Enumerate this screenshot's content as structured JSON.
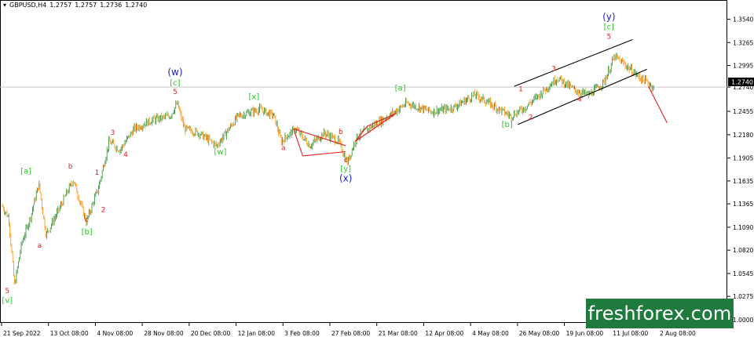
{
  "header": {
    "symbol": "GBPUSD,H4",
    "ohlc": [
      "1.2757",
      "1.2757",
      "1.2736",
      "1.2740"
    ]
  },
  "brand": {
    "logo_text": "freshforex.com",
    "logo_color": "#1f7a3d"
  },
  "colors": {
    "candle_up": "#2e8b2e",
    "candle_down": "#ff8c00",
    "grid_labels": "#000000",
    "wave_green": "#22cc22",
    "wave_red": "#e02020",
    "wave_blue": "#1e1ec8",
    "triangle_line": "#e02020",
    "channel_line": "#000000",
    "forecast_line": "#e02020",
    "current_price_line": "#c8c8c8"
  },
  "chart_data": {
    "type": "candlestick",
    "instrument": "GBPUSD",
    "timeframe": "H4",
    "ylim": [
      1.0,
      1.36
    ],
    "y_ticks": [
      "1.3540",
      "1.3265",
      "1.2995",
      "1.2740",
      "1.2455",
      "1.2180",
      "1.1905",
      "1.1635",
      "1.1365",
      "1.1090",
      "1.0820",
      "1.0545",
      "1.0275",
      "1.0000"
    ],
    "x_ticks": [
      "21 Sep 2022",
      "13 Oct 08:00",
      "4 Nov 08:00",
      "28 Nov 08:00",
      "20 Dec 08:00",
      "12 Jan 08:00",
      "3 Feb 08:00",
      "27 Feb 08:00",
      "21 Mar 08:00",
      "12 Apr 08:00",
      "4 May 08:00",
      "26 May 08:00",
      "19 Jun 08:00",
      "11 Jul 08:00",
      "2 Aug 08:00"
    ],
    "current_price": 1.274,
    "current_price_label": "1.2740",
    "price_path": [
      [
        0,
        1.135
      ],
      [
        0.01,
        1.12
      ],
      [
        0.018,
        1.04
      ],
      [
        0.028,
        1.09
      ],
      [
        0.04,
        1.12
      ],
      [
        0.052,
        1.16
      ],
      [
        0.062,
        1.1
      ],
      [
        0.08,
        1.13
      ],
      [
        0.1,
        1.165
      ],
      [
        0.118,
        1.115
      ],
      [
        0.135,
        1.155
      ],
      [
        0.15,
        1.21
      ],
      [
        0.165,
        1.2
      ],
      [
        0.185,
        1.225
      ],
      [
        0.21,
        1.235
      ],
      [
        0.235,
        1.24
      ],
      [
        0.245,
        1.255
      ],
      [
        0.255,
        1.225
      ],
      [
        0.275,
        1.22
      ],
      [
        0.3,
        1.205
      ],
      [
        0.33,
        1.24
      ],
      [
        0.36,
        1.248
      ],
      [
        0.38,
        1.24
      ],
      [
        0.39,
        1.21
      ],
      [
        0.41,
        1.225
      ],
      [
        0.43,
        1.205
      ],
      [
        0.45,
        1.22
      ],
      [
        0.47,
        1.21
      ],
      [
        0.482,
        1.185
      ],
      [
        0.495,
        1.215
      ],
      [
        0.52,
        1.23
      ],
      [
        0.54,
        1.24
      ],
      [
        0.565,
        1.255
      ],
      [
        0.6,
        1.245
      ],
      [
        0.63,
        1.25
      ],
      [
        0.66,
        1.265
      ],
      [
        0.69,
        1.25
      ],
      [
        0.71,
        1.24
      ],
      [
        0.73,
        1.25
      ],
      [
        0.75,
        1.265
      ],
      [
        0.775,
        1.285
      ],
      [
        0.8,
        1.27
      ],
      [
        0.82,
        1.265
      ],
      [
        0.84,
        1.28
      ],
      [
        0.855,
        1.31
      ],
      [
        0.87,
        1.3
      ],
      [
        0.89,
        1.285
      ],
      [
        0.9,
        1.28
      ],
      [
        0.91,
        1.273
      ]
    ],
    "annotations": [
      {
        "text": "[v]",
        "color": "green",
        "x": 0.008,
        "y": 1.02
      },
      {
        "text": "5",
        "color": "red",
        "x": 0.008,
        "y": 1.0315
      },
      {
        "text": "[a]",
        "color": "green",
        "x": 0.034,
        "y": 1.172
      },
      {
        "text": "a",
        "color": "red",
        "x": 0.053,
        "y": 1.085
      },
      {
        "text": "b",
        "color": "red",
        "x": 0.096,
        "y": 1.178
      },
      {
        "text": "c",
        "color": "red",
        "x": 0.119,
        "y": 1.1155
      },
      {
        "text": "[b]",
        "color": "green",
        "x": 0.119,
        "y": 1.1005
      },
      {
        "text": "1",
        "color": "red",
        "x": 0.133,
        "y": 1.171
      },
      {
        "text": "2",
        "color": "red",
        "x": 0.142,
        "y": 1.127
      },
      {
        "text": "3",
        "color": "red",
        "x": 0.155,
        "y": 1.218
      },
      {
        "text": "4",
        "color": "red",
        "x": 0.173,
        "y": 1.192
      },
      {
        "text": "5",
        "color": "red",
        "x": 0.242,
        "y": 1.266
      },
      {
        "text": "[c]",
        "color": "green",
        "x": 0.242,
        "y": 1.276
      },
      {
        "text": "(w)",
        "color": "blue",
        "x": 0.242,
        "y": 1.288
      },
      {
        "text": "[w]",
        "color": "green",
        "x": 0.305,
        "y": 1.195
      },
      {
        "text": "[x]",
        "color": "green",
        "x": 0.352,
        "y": 1.26
      },
      {
        "text": "a",
        "color": "red",
        "x": 0.393,
        "y": 1.2
      },
      {
        "text": "b",
        "color": "red",
        "x": 0.473,
        "y": 1.219
      },
      {
        "text": "c",
        "color": "red",
        "x": 0.48,
        "y": 1.1855
      },
      {
        "text": "[y]",
        "color": "green",
        "x": 0.48,
        "y": 1.175
      },
      {
        "text": "(x)",
        "color": "blue",
        "x": 0.48,
        "y": 1.163
      },
      {
        "text": "[a]",
        "color": "green",
        "x": 0.556,
        "y": 1.27
      },
      {
        "text": "[b]",
        "color": "green",
        "x": 0.705,
        "y": 1.227
      },
      {
        "text": "1",
        "color": "red",
        "x": 0.724,
        "y": 1.269
      },
      {
        "text": "2",
        "color": "red",
        "x": 0.738,
        "y": 1.236
      },
      {
        "text": "3",
        "color": "red",
        "x": 0.77,
        "y": 1.293
      },
      {
        "text": "4",
        "color": "red",
        "x": 0.806,
        "y": 1.257
      },
      {
        "text": "5",
        "color": "red",
        "x": 0.847,
        "y": 1.331
      },
      {
        "text": "[c]",
        "color": "green",
        "x": 0.847,
        "y": 1.342
      },
      {
        "text": "(y)",
        "color": "blue",
        "x": 0.847,
        "y": 1.353
      }
    ]
  }
}
